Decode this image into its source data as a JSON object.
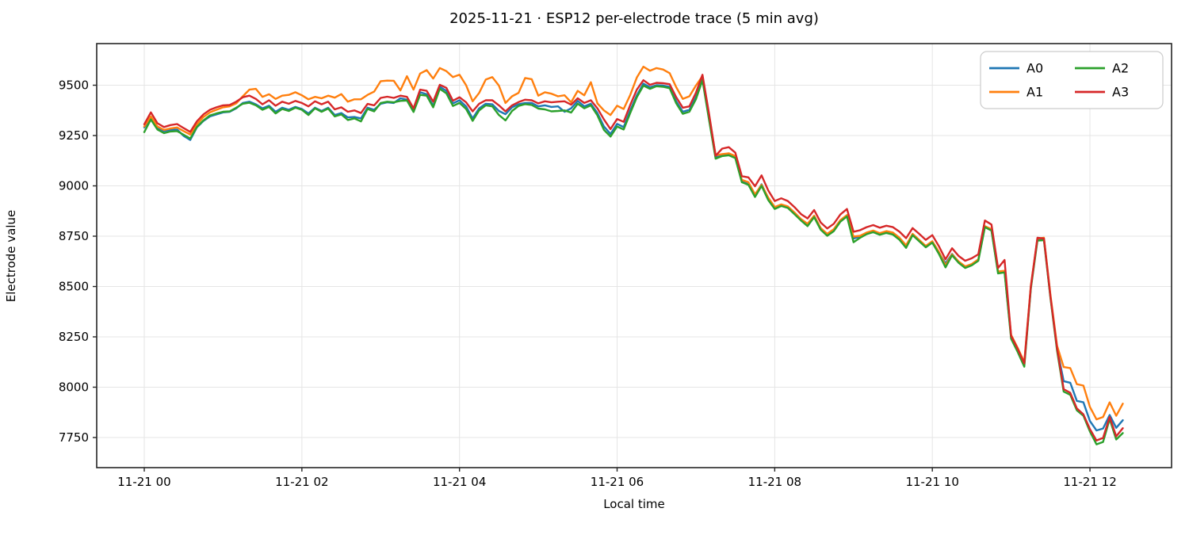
{
  "title": "2025-11-21 · ESP12 per-electrode trace (5 min avg)",
  "chart_data": {
    "type": "line",
    "title": "2025-11-21 · ESP12 per-electrode trace (5 min avg)",
    "xlabel": "Local time",
    "ylabel": "Electrode value",
    "x_start": "2025-11-21 00:00",
    "x_step_minutes": 5,
    "x_tick_hours": [
      0,
      2,
      4,
      6,
      8,
      10,
      12
    ],
    "x_tick_labels": [
      "11-21 00",
      "11-21 02",
      "11-21 04",
      "11-21 06",
      "11-21 08",
      "11-21 10",
      "11-21 12"
    ],
    "y_ticks": [
      7750,
      8000,
      8250,
      8500,
      8750,
      9000,
      9250,
      9500
    ],
    "ylim": [
      7598,
      9707
    ],
    "grid": true,
    "grid_color": "#e5e5e5",
    "legend_position": "upper right",
    "series": [
      {
        "name": "A0",
        "color": "#1f77b4",
        "values": [
          9290,
          9340,
          9288,
          9272,
          9278,
          9280,
          9248,
          9228,
          9290,
          9322,
          9345,
          9355,
          9365,
          9368,
          9385,
          9412,
          9418,
          9405,
          9385,
          9398,
          9368,
          9388,
          9378,
          9392,
          9382,
          9360,
          9388,
          9372,
          9388,
          9352,
          9362,
          9340,
          9342,
          9335,
          9388,
          9378,
          9408,
          9415,
          9412,
          9435,
          9428,
          9372,
          9465,
          9455,
          9398,
          9492,
          9472,
          9410,
          9425,
          9395,
          9335,
          9385,
          9408,
          9405,
          9372,
          9356,
          9390,
          9405,
          9412,
          9412,
          9395,
          9400,
          9392,
          9395,
          9368,
          9385,
          9422,
          9395,
          9408,
          9362,
          9295,
          9258,
          9308,
          9292,
          9375,
          9450,
          9508,
          9490,
          9500,
          9498,
          9492,
          9420,
          9368,
          9378,
          9440,
          9532,
          9335,
          9142,
          9152,
          9158,
          9142,
          9025,
          9012,
          8952,
          9008,
          8938,
          8892,
          8905,
          8895,
          8866,
          8833,
          8808,
          8850,
          8788,
          8758,
          8782,
          8828,
          8853,
          8738,
          8748,
          8765,
          8775,
          8762,
          8770,
          8763,
          8738,
          8698,
          8758,
          8728,
          8698,
          8722,
          8668,
          8615,
          8662,
          8623,
          8598,
          8610,
          8632,
          8798,
          8782,
          8572,
          8576,
          8248,
          8185,
          8112,
          8496,
          8734,
          8735,
          8446,
          8190,
          8030,
          8022,
          7932,
          7925,
          7832,
          7785,
          7795,
          7862,
          7798,
          7836
        ]
      },
      {
        "name": "A1",
        "color": "#ff7f0e",
        "values": [
          9295,
          9345,
          9295,
          9278,
          9285,
          9290,
          9272,
          9255,
          9305,
          9342,
          9365,
          9378,
          9390,
          9395,
          9410,
          9445,
          9478,
          9482,
          9442,
          9455,
          9432,
          9448,
          9452,
          9465,
          9450,
          9430,
          9442,
          9435,
          9448,
          9438,
          9456,
          9418,
          9430,
          9430,
          9452,
          9468,
          9520,
          9523,
          9522,
          9474,
          9545,
          9478,
          9558,
          9575,
          9533,
          9585,
          9570,
          9540,
          9552,
          9500,
          9420,
          9462,
          9528,
          9540,
          9498,
          9412,
          9445,
          9462,
          9536,
          9530,
          9448,
          9465,
          9458,
          9445,
          9450,
          9415,
          9472,
          9450,
          9515,
          9410,
          9375,
          9352,
          9398,
          9382,
          9452,
          9538,
          9592,
          9572,
          9585,
          9578,
          9560,
          9490,
          9432,
          9445,
          9498,
          9545,
          9352,
          9152,
          9158,
          9162,
          9148,
          9030,
          9018,
          8958,
          9005,
          8942,
          8895,
          8908,
          8898,
          8868,
          8835,
          8812,
          8852,
          8790,
          8762,
          8785,
          8830,
          8855,
          8748,
          8752,
          8768,
          8778,
          8765,
          8775,
          8768,
          8742,
          8705,
          8762,
          8732,
          8702,
          8725,
          8672,
          8605,
          8660,
          8625,
          8600,
          8612,
          8635,
          8800,
          8785,
          8575,
          8578,
          8260,
          8195,
          8125,
          8505,
          8738,
          8742,
          8455,
          8205,
          8100,
          8095,
          8015,
          8008,
          7902,
          7840,
          7852,
          7925,
          7858,
          7918
        ]
      },
      {
        "name": "A2",
        "color": "#2ca02c",
        "values": [
          9267,
          9330,
          9280,
          9262,
          9270,
          9272,
          9254,
          9235,
          9292,
          9325,
          9350,
          9360,
          9368,
          9370,
          9388,
          9408,
          9413,
          9400,
          9378,
          9392,
          9360,
          9382,
          9372,
          9388,
          9378,
          9352,
          9385,
          9368,
          9384,
          9345,
          9355,
          9327,
          9335,
          9320,
          9382,
          9370,
          9412,
          9418,
          9415,
          9422,
          9424,
          9367,
          9452,
          9448,
          9390,
          9482,
          9460,
          9397,
          9412,
          9382,
          9323,
          9375,
          9400,
          9395,
          9352,
          9325,
          9372,
          9397,
          9406,
          9402,
          9384,
          9380,
          9370,
          9372,
          9375,
          9364,
          9408,
          9385,
          9400,
          9350,
          9278,
          9245,
          9295,
          9280,
          9362,
          9440,
          9498,
          9482,
          9495,
          9492,
          9485,
          9410,
          9358,
          9368,
          9430,
          9525,
          9328,
          9135,
          9148,
          9152,
          9138,
          9018,
          9005,
          8945,
          9000,
          8930,
          8885,
          8900,
          8890,
          8860,
          8828,
          8800,
          8845,
          8782,
          8752,
          8775,
          8822,
          8848,
          8720,
          8742,
          8760,
          8770,
          8757,
          8766,
          8758,
          8732,
          8692,
          8755,
          8725,
          8695,
          8718,
          8662,
          8595,
          8655,
          8618,
          8592,
          8605,
          8628,
          8795,
          8778,
          8565,
          8570,
          8240,
          8175,
          8102,
          8490,
          8728,
          8730,
          8440,
          8180,
          7978,
          7962,
          7885,
          7858,
          7780,
          7716,
          7728,
          7842,
          7740,
          7772
        ]
      },
      {
        "name": "A3",
        "color": "#d62728",
        "values": [
          9306,
          9365,
          9311,
          9292,
          9302,
          9307,
          9287,
          9268,
          9320,
          9355,
          9378,
          9390,
          9400,
          9402,
          9418,
          9440,
          9448,
          9432,
          9405,
          9425,
          9398,
          9418,
          9408,
          9422,
          9412,
          9395,
          9420,
          9405,
          9418,
          9380,
          9390,
          9368,
          9375,
          9362,
          9407,
          9400,
          9437,
          9443,
          9437,
          9448,
          9442,
          9385,
          9478,
          9472,
          9418,
          9502,
          9487,
          9423,
          9440,
          9415,
          9370,
          9408,
          9425,
          9425,
          9400,
          9370,
          9400,
          9416,
          9428,
          9425,
          9410,
          9420,
          9415,
          9418,
          9420,
          9403,
          9435,
          9412,
          9425,
          9385,
          9330,
          9282,
          9332,
          9318,
          9402,
          9478,
          9525,
          9502,
          9512,
          9510,
          9505,
          9440,
          9388,
          9395,
          9462,
          9552,
          9358,
          9150,
          9185,
          9192,
          9165,
          9048,
          9042,
          8998,
          9052,
          8978,
          8925,
          8938,
          8925,
          8895,
          8860,
          8838,
          8880,
          8818,
          8788,
          8812,
          8858,
          8885,
          8772,
          8780,
          8795,
          8805,
          8792,
          8802,
          8795,
          8772,
          8740,
          8790,
          8762,
          8732,
          8755,
          8700,
          8635,
          8690,
          8652,
          8628,
          8640,
          8660,
          8828,
          8808,
          8592,
          8632,
          8255,
          8190,
          8118,
          8500,
          8742,
          8738,
          8448,
          8192,
          7990,
          7972,
          7895,
          7865,
          7792,
          7735,
          7748,
          7852,
          7756,
          7796
        ]
      }
    ]
  }
}
